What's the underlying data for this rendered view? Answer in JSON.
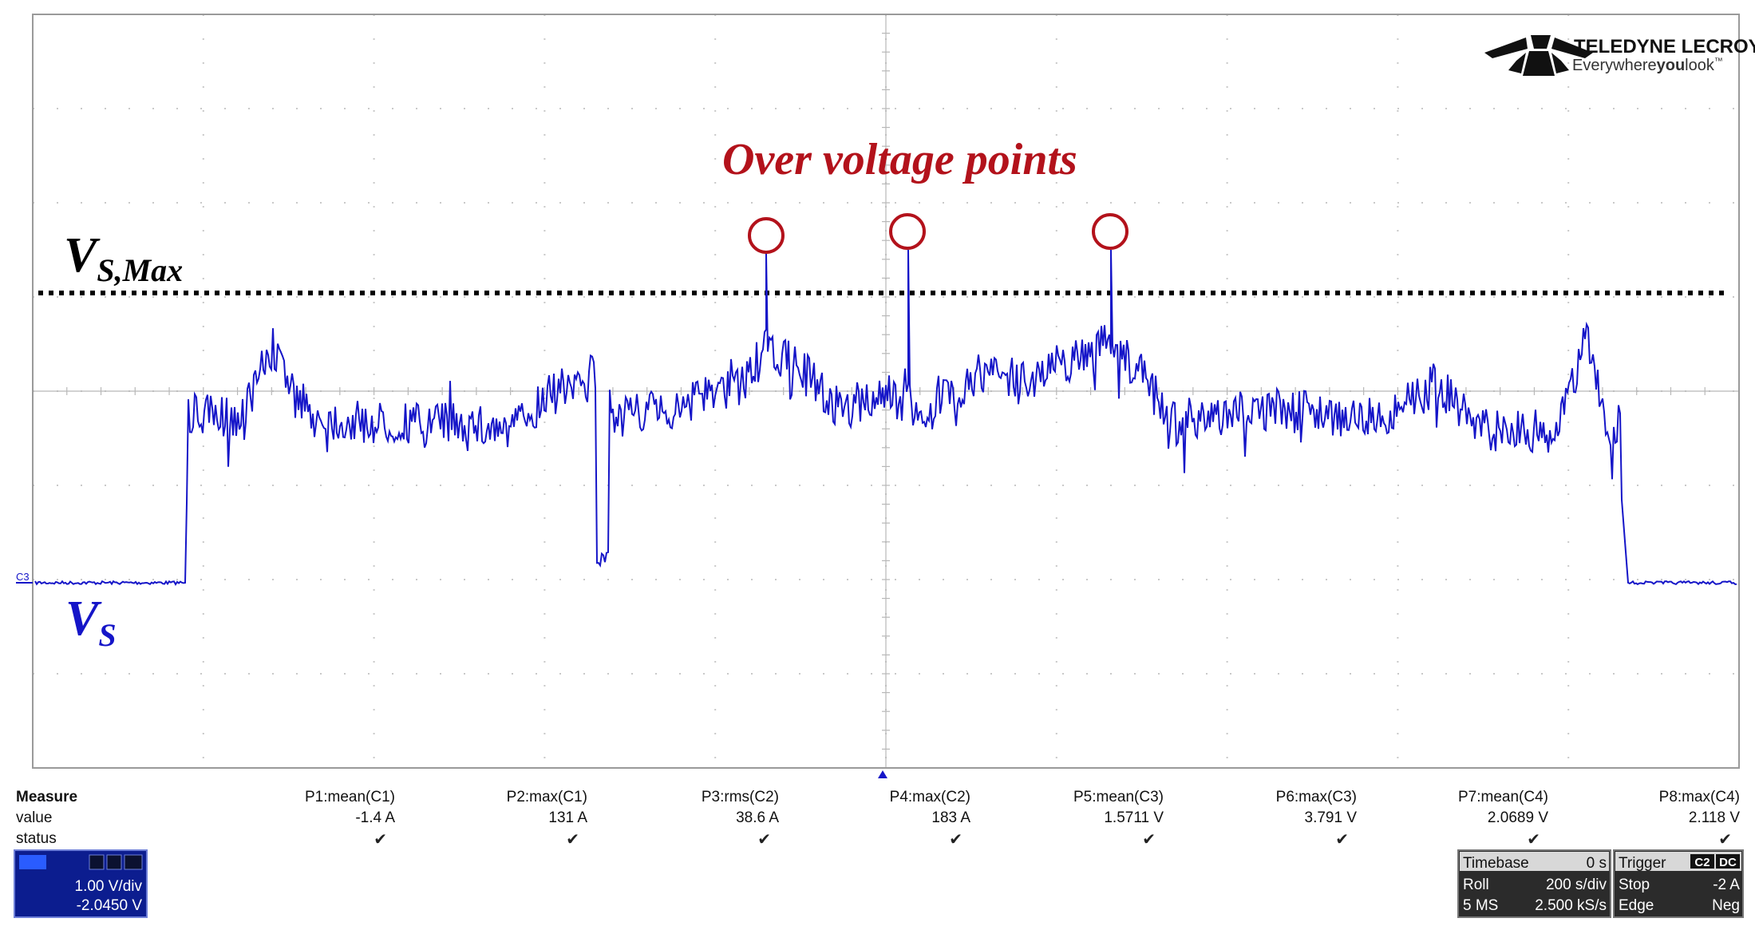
{
  "logo": {
    "brand": "TELEDYNE LECROY",
    "tagline_pre": "Everywhere",
    "tagline_bold": "you",
    "tagline_post": "look",
    "trademark": "™",
    "icon": "teledyne-logo-icon"
  },
  "annotations": {
    "title": "Over voltage points",
    "vs_max_main": "V",
    "vs_max_sub": "S,Max",
    "vs_main": "V",
    "vs_sub": "S",
    "over_voltage_marker_count": 3
  },
  "trace": {
    "channel_marker": "C3",
    "color": "#1515c8",
    "annotation_color": "#b3121b"
  },
  "measure": {
    "heading": "Measure",
    "row_value": "value",
    "row_status": "status",
    "params": [
      {
        "label": "P1:mean(C1)",
        "value": "-1.4 A",
        "status": "✔"
      },
      {
        "label": "P2:max(C1)",
        "value": "131 A",
        "status": "✔"
      },
      {
        "label": "P3:rms(C2)",
        "value": "38.6 A",
        "status": "✔"
      },
      {
        "label": "P4:max(C2)",
        "value": "183 A",
        "status": "✔"
      },
      {
        "label": "P5:mean(C3)",
        "value": "1.5711 V",
        "status": "✔"
      },
      {
        "label": "P6:max(C3)",
        "value": "3.791 V",
        "status": "✔"
      },
      {
        "label": "P7:mean(C4)",
        "value": "2.0689 V",
        "status": "✔"
      },
      {
        "label": "P8:max(C4)",
        "value": "2.118 V",
        "status": "✔"
      }
    ]
  },
  "channel_box": {
    "scale": "1.00 V/div",
    "offset": "-2.0450 V"
  },
  "timebase": {
    "title": "Timebase",
    "delay": "0 s",
    "mode": "Roll",
    "time_div": "200 s/div",
    "memory": "5 MS",
    "sample_rate": "2.500 kS/s"
  },
  "trigger": {
    "title": "Trigger",
    "source_badge": "C2",
    "coupling_badge": "DC",
    "state": "Stop",
    "level": "-2 A",
    "type": "Edge",
    "slope": "Neg"
  }
}
